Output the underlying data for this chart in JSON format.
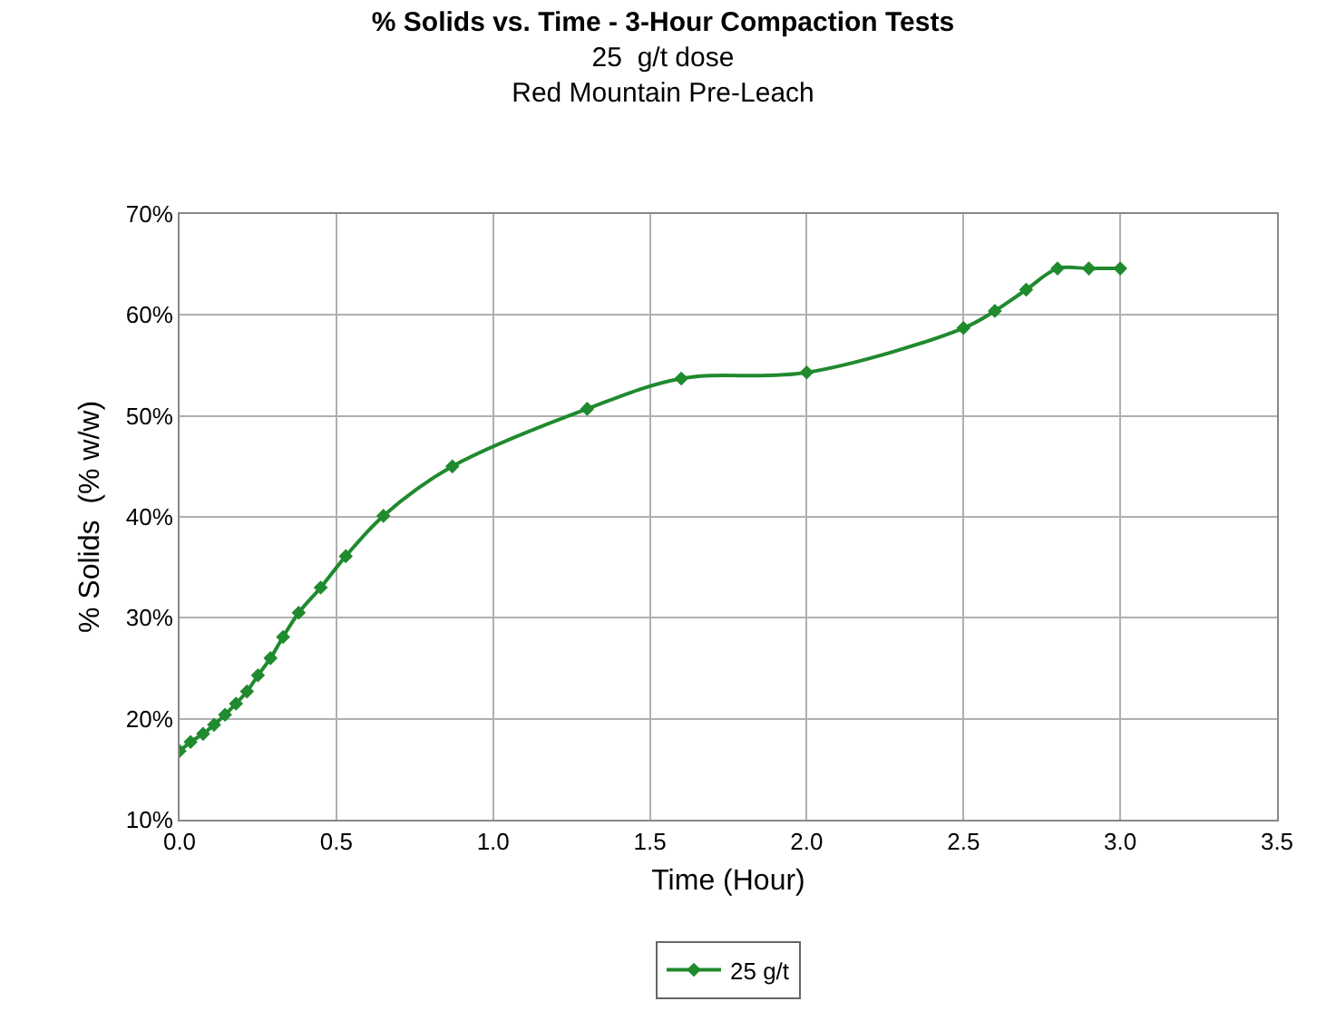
{
  "chart_data": {
    "type": "line",
    "title": "% Solids vs. Time - 3-Hour Compaction Tests",
    "subtitle": "25  g/t dose\nRed Mountain Pre-Leach",
    "xlabel": "Time (Hour)",
    "ylabel": "% Solids  (% w/w)",
    "x": [
      0,
      0.035,
      0.075,
      0.11,
      0.145,
      0.18,
      0.215,
      0.25,
      0.29,
      0.33,
      0.38,
      0.45,
      0.53,
      0.65,
      0.87,
      1.3,
      1.6,
      2.0,
      2.5,
      2.6,
      2.7,
      2.8,
      2.9,
      3.0
    ],
    "series": [
      {
        "name": "25 g/t",
        "color": "#1f8a2e",
        "values": [
          16.8,
          17.7,
          18.5,
          19.4,
          20.4,
          21.5,
          22.7,
          24.3,
          26.0,
          28.1,
          30.5,
          33.0,
          36.1,
          40.1,
          45.0,
          50.7,
          53.7,
          54.3,
          58.7,
          60.4,
          62.5,
          64.6,
          64.6,
          64.6
        ]
      }
    ],
    "xlim": [
      0,
      3.5
    ],
    "xticks": [
      {
        "value": 0,
        "label": "0.0"
      },
      {
        "value": 0.5,
        "label": "0.5"
      },
      {
        "value": 1,
        "label": "1.0"
      },
      {
        "value": 1.5,
        "label": "1.5"
      },
      {
        "value": 2,
        "label": "2.0"
      },
      {
        "value": 2.5,
        "label": "2.5"
      },
      {
        "value": 3,
        "label": "3.0"
      },
      {
        "value": 3.5,
        "label": "3.5"
      }
    ],
    "ylim": [
      10,
      70
    ],
    "yticks": [
      {
        "value": 10,
        "label": "10%"
      },
      {
        "value": 20,
        "label": "20%"
      },
      {
        "value": 30,
        "label": "30%"
      },
      {
        "value": 40,
        "label": "40%"
      },
      {
        "value": 50,
        "label": "50%"
      },
      {
        "value": 60,
        "label": "60%"
      },
      {
        "value": 70,
        "label": "70%"
      }
    ],
    "grid": true,
    "legend": "bottom",
    "marker": "diamond",
    "line_style": "solid"
  }
}
